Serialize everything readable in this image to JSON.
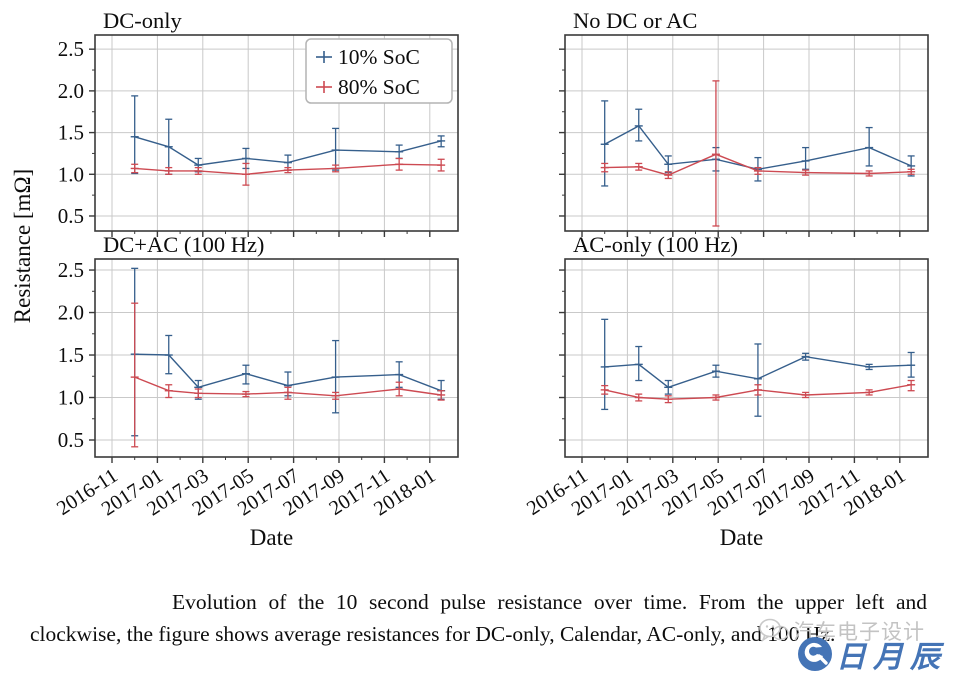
{
  "figure": {
    "ylabel": "Resistance [mΩ]",
    "xlabel": "Date",
    "y_ticks": [
      "2.5",
      "2.0",
      "1.5",
      "1.0",
      "0.5"
    ],
    "y_tick_values": [
      2.5,
      2.0,
      1.5,
      1.0,
      0.5
    ],
    "x_ticks": [
      "2016-11",
      "2017-01",
      "2017-03",
      "2017-05",
      "2017-07",
      "2017-09",
      "2017-11",
      "2018-01"
    ],
    "x_tick_months": [
      0,
      2,
      4,
      6,
      8,
      10,
      12,
      14
    ],
    "legend": [
      {
        "label": "10% SoC",
        "color": "#365f8c"
      },
      {
        "label": "80% SoC",
        "color": "#cd4a52"
      }
    ],
    "colors": {
      "blue_series": "#365f8c",
      "red_series": "#cd4a52",
      "grid": "#c9c9c9",
      "spine": "#3a3a3a",
      "text": "#0d0d0d"
    }
  },
  "chart_data": [
    {
      "type": "line",
      "title": "DC-only",
      "position": "top-left",
      "xlabel": "",
      "ylabel": "Resistance [mΩ]",
      "ylim": [
        0.32,
        2.67
      ],
      "x_months_since_2016_11": [
        1.0,
        2.5,
        3.8,
        5.9,
        7.75,
        9.85,
        12.65,
        14.5
      ],
      "series": [
        {
          "name": "10% SoC",
          "values": [
            1.45,
            1.33,
            1.11,
            1.19,
            1.14,
            1.29,
            1.27,
            1.4
          ],
          "err_low": [
            1.01,
            1.0,
            1.03,
            1.07,
            1.05,
            1.05,
            1.19,
            1.33
          ],
          "err_high": [
            1.94,
            1.66,
            1.19,
            1.31,
            1.23,
            1.55,
            1.35,
            1.46
          ]
        },
        {
          "name": "80% SoC",
          "values": [
            1.07,
            1.04,
            1.04,
            1.0,
            1.05,
            1.07,
            1.12,
            1.11
          ],
          "err_low": [
            1.02,
            1.0,
            1.0,
            0.87,
            1.02,
            1.03,
            1.05,
            1.04
          ],
          "err_high": [
            1.12,
            1.08,
            1.08,
            1.13,
            1.08,
            1.11,
            1.19,
            1.18
          ]
        }
      ]
    },
    {
      "type": "line",
      "title": "No DC or AC",
      "position": "top-right",
      "xlabel": "",
      "ylabel": "",
      "ylim": [
        0.32,
        2.67
      ],
      "x_months_since_2016_11": [
        1.0,
        2.5,
        3.8,
        5.9,
        7.75,
        9.85,
        12.65,
        14.5
      ],
      "series": [
        {
          "name": "10% SoC",
          "values": [
            1.36,
            1.58,
            1.12,
            1.18,
            1.06,
            1.16,
            1.32,
            1.1
          ],
          "err_low": [
            0.86,
            1.4,
            1.02,
            1.04,
            0.92,
            1.06,
            1.1,
            0.98
          ],
          "err_high": [
            1.88,
            1.78,
            1.22,
            1.32,
            1.2,
            1.32,
            1.56,
            1.22
          ]
        },
        {
          "name": "80% SoC",
          "values": [
            1.08,
            1.09,
            0.99,
            1.24,
            1.04,
            1.02,
            1.01,
            1.03
          ],
          "err_low": [
            1.03,
            1.05,
            0.95,
            0.38,
            1.0,
            0.99,
            0.98,
            1.0
          ],
          "err_high": [
            1.13,
            1.13,
            1.03,
            2.12,
            1.08,
            1.05,
            1.04,
            1.06
          ]
        }
      ]
    },
    {
      "type": "line",
      "title": "DC+AC (100 Hz)",
      "position": "bottom-left",
      "xlabel": "Date",
      "ylabel": "Resistance [mΩ]",
      "ylim": [
        0.3,
        2.63
      ],
      "x_months_since_2016_11": [
        1.0,
        2.5,
        3.8,
        5.9,
        7.75,
        9.85,
        12.65,
        14.5
      ],
      "series": [
        {
          "name": "10% SoC",
          "values": [
            1.51,
            1.5,
            1.12,
            1.28,
            1.14,
            1.24,
            1.27,
            1.08
          ],
          "err_low": [
            0.55,
            1.28,
            0.98,
            1.16,
            1.02,
            0.82,
            1.12,
            0.98
          ],
          "err_high": [
            2.52,
            1.73,
            1.2,
            1.38,
            1.3,
            1.67,
            1.42,
            1.2
          ]
        },
        {
          "name": "80% SoC",
          "values": [
            1.24,
            1.08,
            1.05,
            1.04,
            1.06,
            1.02,
            1.1,
            1.03
          ],
          "err_low": [
            0.42,
            1.0,
            1.0,
            1.01,
            0.98,
            0.98,
            1.02,
            0.97
          ],
          "err_high": [
            2.11,
            1.15,
            1.1,
            1.07,
            1.12,
            1.06,
            1.18,
            1.08
          ]
        }
      ]
    },
    {
      "type": "line",
      "title": "AC-only (100 Hz)",
      "position": "bottom-right",
      "xlabel": "Date",
      "ylabel": "",
      "ylim": [
        0.3,
        2.63
      ],
      "x_months_since_2016_11": [
        1.0,
        2.5,
        3.8,
        5.9,
        7.75,
        9.85,
        12.65,
        14.5
      ],
      "series": [
        {
          "name": "10% SoC",
          "values": [
            1.36,
            1.39,
            1.12,
            1.31,
            1.22,
            1.48,
            1.36,
            1.38
          ],
          "err_low": [
            0.86,
            1.2,
            1.04,
            1.24,
            0.78,
            1.44,
            1.33,
            1.24
          ],
          "err_high": [
            1.92,
            1.6,
            1.2,
            1.38,
            1.63,
            1.52,
            1.39,
            1.53
          ]
        },
        {
          "name": "80% SoC",
          "values": [
            1.09,
            1.0,
            0.98,
            1.0,
            1.09,
            1.03,
            1.06,
            1.15
          ],
          "err_low": [
            1.04,
            0.96,
            0.94,
            0.97,
            1.03,
            1.0,
            1.03,
            1.08
          ],
          "err_high": [
            1.14,
            1.04,
            1.02,
            1.03,
            1.15,
            1.06,
            1.09,
            1.2
          ]
        }
      ]
    }
  ],
  "caption": {
    "text": "Evolution of the 10 second pulse resistance over time. From the upper left and clockwise, the figure shows average resistances for DC-only, Calendar, AC-only, and 100 Hz."
  },
  "watermark": {
    "gray_text": "汽车电子设计",
    "blue_text": "日月辰",
    "gray_color": "#c3c3c3",
    "blue_color": "#4474b6"
  }
}
